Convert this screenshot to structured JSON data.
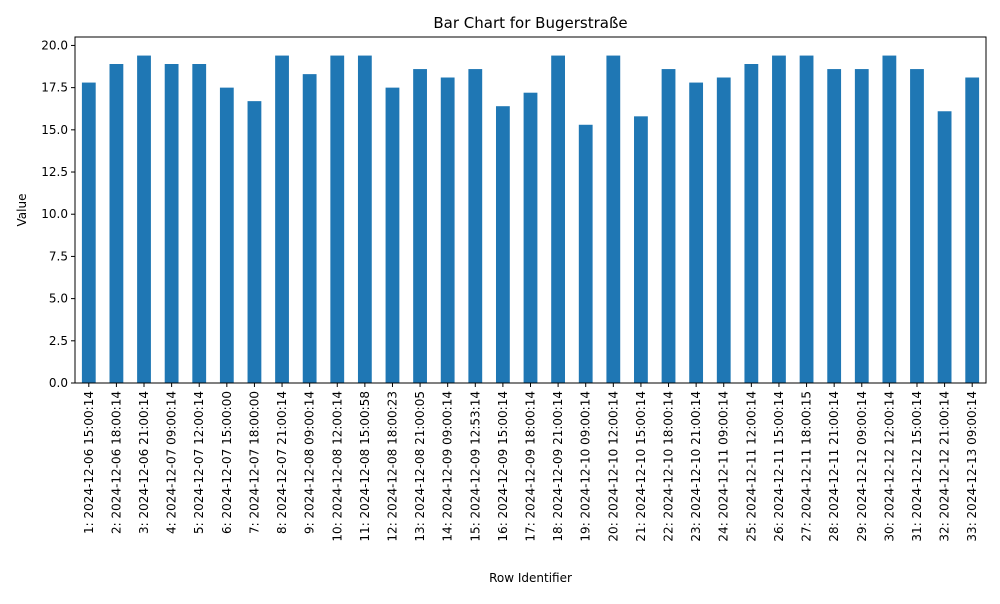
{
  "chart_data": {
    "type": "bar",
    "title": "Bar Chart for Bugerstraße",
    "xlabel": "Row Identifier",
    "ylabel": "Value",
    "ylim": [
      0,
      20.5
    ],
    "yticks": [
      "0.0",
      "2.5",
      "5.0",
      "7.5",
      "10.0",
      "12.5",
      "15.0",
      "17.5",
      "20.0"
    ],
    "grid": false,
    "bar_color": "#1f77b4",
    "categories": [
      "1: 2024-12-06 15:00:14",
      "2: 2024-12-06 18:00:14",
      "3: 2024-12-06 21:00:14",
      "4: 2024-12-07 09:00:14",
      "5: 2024-12-07 12:00:14",
      "6: 2024-12-07 15:00:00",
      "7: 2024-12-07 18:00:00",
      "8: 2024-12-07 21:00:14",
      "9: 2024-12-08 09:00:14",
      "10: 2024-12-08 12:00:14",
      "11: 2024-12-08 15:00:58",
      "12: 2024-12-08 18:00:23",
      "13: 2024-12-08 21:00:05",
      "14: 2024-12-09 09:00:14",
      "15: 2024-12-09 12:53:14",
      "16: 2024-12-09 15:00:14",
      "17: 2024-12-09 18:00:14",
      "18: 2024-12-09 21:00:14",
      "19: 2024-12-10 09:00:14",
      "20: 2024-12-10 12:00:14",
      "21: 2024-12-10 15:00:14",
      "22: 2024-12-10 18:00:14",
      "23: 2024-12-10 21:00:14",
      "24: 2024-12-11 09:00:14",
      "25: 2024-12-11 12:00:14",
      "26: 2024-12-11 15:00:14",
      "27: 2024-12-11 18:00:15",
      "28: 2024-12-11 21:00:14",
      "29: 2024-12-12 09:00:14",
      "30: 2024-12-12 12:00:14",
      "31: 2024-12-12 15:00:14",
      "32: 2024-12-12 21:00:14",
      "33: 2024-12-13 09:00:14"
    ],
    "values": [
      17.8,
      18.9,
      19.4,
      18.9,
      18.9,
      17.5,
      16.7,
      19.4,
      18.3,
      19.4,
      19.4,
      17.5,
      18.6,
      18.1,
      18.6,
      16.4,
      17.2,
      19.4,
      15.3,
      19.4,
      15.8,
      18.6,
      17.8,
      18.1,
      18.9,
      19.4,
      19.4,
      18.6,
      18.6,
      19.4,
      18.6,
      16.1,
      18.1
    ]
  }
}
